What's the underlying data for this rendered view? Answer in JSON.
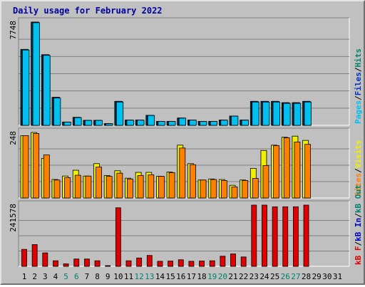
{
  "title": "Daily usage for February 2022",
  "colors": {
    "frame_bg": "#c0c0c0",
    "title": "#0000a0",
    "pages": "#00c0f0",
    "files": "#0030c0",
    "hits": "#00806a",
    "visits": "#f0f000",
    "sites": "#ff8000",
    "kbf": "#e00000",
    "kbin": "#0000c0",
    "kbout": "#00806a",
    "weekend": "#00806a",
    "weekday": "#000000"
  },
  "chart_data": [
    {
      "type": "bar",
      "panel": "hits-files-pages",
      "categories": [
        "1",
        "2",
        "3",
        "4",
        "5",
        "6",
        "7",
        "8",
        "9",
        "10",
        "11",
        "12",
        "13",
        "14",
        "15",
        "16",
        "17",
        "18",
        "19",
        "20",
        "21",
        "22",
        "23",
        "24",
        "25",
        "26",
        "27",
        "28",
        "29",
        "30",
        "31"
      ],
      "ymax_label": "7748",
      "ylim": [
        0,
        7748
      ],
      "series": [
        {
          "name": "Hits",
          "values": [
            5700,
            7748,
            5300,
            2100,
            250,
            600,
            380,
            380,
            130,
            1800,
            400,
            400,
            750,
            300,
            300,
            550,
            400,
            300,
            300,
            400,
            700,
            400,
            1800,
            1800,
            1800,
            1700,
            1700,
            1800,
            0,
            0,
            0
          ]
        },
        {
          "name": "Files",
          "values": [
            5700,
            7748,
            5300,
            2100,
            250,
            600,
            380,
            380,
            130,
            1800,
            400,
            400,
            750,
            300,
            300,
            550,
            400,
            300,
            300,
            400,
            700,
            400,
            1800,
            1800,
            1800,
            1700,
            1700,
            1800,
            0,
            0,
            0
          ]
        },
        {
          "name": "Pages",
          "values": [
            5650,
            7700,
            5250,
            2050,
            240,
            580,
            370,
            370,
            120,
            1750,
            390,
            390,
            740,
            290,
            290,
            540,
            390,
            290,
            290,
            390,
            690,
            390,
            1750,
            1750,
            1750,
            1650,
            1650,
            1750,
            0,
            0,
            0
          ]
        }
      ],
      "right_labels": [
        "Pages",
        "Files",
        "Hits"
      ]
    },
    {
      "type": "bar",
      "panel": "visits-sites",
      "categories": [
        "1",
        "2",
        "3",
        "4",
        "5",
        "6",
        "7",
        "8",
        "9",
        "10",
        "11",
        "12",
        "13",
        "14",
        "15",
        "16",
        "17",
        "18",
        "19",
        "20",
        "21",
        "22",
        "23",
        "24",
        "25",
        "26",
        "27",
        "28",
        "29",
        "30",
        "31"
      ],
      "ymax_label": "248",
      "ylim": [
        0,
        248
      ],
      "series": [
        {
          "name": "Visits",
          "values": [
            236,
            248,
            150,
            70,
            83,
            105,
            83,
            130,
            85,
            103,
            75,
            97,
            97,
            82,
            98,
            200,
            130,
            68,
            72,
            70,
            48,
            68,
            112,
            180,
            200,
            230,
            234,
            218,
            0,
            0,
            0
          ]
        },
        {
          "name": "Sites",
          "values": [
            236,
            244,
            163,
            68,
            77,
            86,
            83,
            117,
            82,
            94,
            72,
            85,
            88,
            82,
            96,
            189,
            126,
            68,
            70,
            66,
            42,
            66,
            74,
            123,
            198,
            228,
            212,
            203,
            0,
            0,
            0
          ]
        }
      ],
      "right_labels": [
        "Sites",
        "Visits"
      ]
    },
    {
      "type": "bar",
      "panel": "kbytes",
      "categories": [
        "1",
        "2",
        "3",
        "4",
        "5",
        "6",
        "7",
        "8",
        "9",
        "10",
        "11",
        "12",
        "13",
        "14",
        "15",
        "16",
        "17",
        "18",
        "19",
        "20",
        "21",
        "22",
        "23",
        "24",
        "25",
        "26",
        "27",
        "28",
        "29",
        "30",
        "31"
      ],
      "ymax_label": "241578",
      "ylim": [
        0,
        241578
      ],
      "series": [
        {
          "name": "KBytes",
          "values": [
            67000,
            86000,
            53000,
            22000,
            10000,
            29000,
            29000,
            22000,
            2000,
            231000,
            22000,
            33000,
            43000,
            20000,
            21000,
            26000,
            20000,
            21000,
            22000,
            40000,
            49000,
            37000,
            241578,
            241578,
            235000,
            235000,
            235000,
            241578,
            0,
            0,
            0
          ]
        }
      ],
      "right_labels": [
        "kB F",
        "kB In",
        "kB Out"
      ]
    }
  ],
  "x_axis": {
    "days": [
      "1",
      "2",
      "3",
      "4",
      "5",
      "6",
      "7",
      "8",
      "9",
      "10",
      "11",
      "12",
      "13",
      "14",
      "15",
      "16",
      "17",
      "18",
      "19",
      "20",
      "21",
      "22",
      "23",
      "24",
      "25",
      "26",
      "27",
      "28",
      "29",
      "30",
      "31"
    ],
    "weekend_days": [
      "5",
      "6",
      "12",
      "13",
      "19",
      "20",
      "26",
      "27"
    ]
  }
}
